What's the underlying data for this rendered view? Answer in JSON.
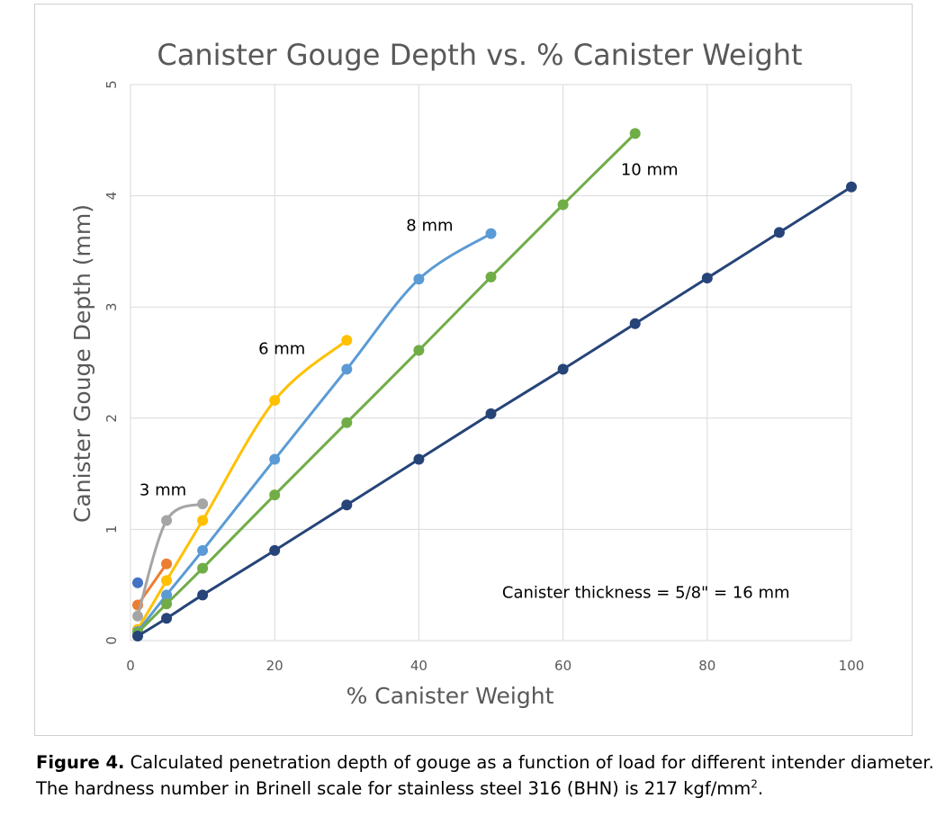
{
  "chart_data": {
    "type": "line",
    "title": "Canister Gouge Depth vs. % Canister Weight",
    "xlabel": "% Canister Weight",
    "ylabel": "Canister Gouge Depth (mm)",
    "xlim": [
      0,
      100
    ],
    "ylim": [
      0,
      5
    ],
    "x_ticks": [
      "0",
      "20",
      "40",
      "60",
      "80",
      "100"
    ],
    "y_ticks": [
      "0",
      "1",
      "2",
      "3",
      "4",
      "5"
    ],
    "grid": true,
    "legend": "none (series labeled directly on plot)",
    "series": [
      {
        "color": "#4472C4",
        "x": [
          1
        ],
        "y": [
          0.52
        ]
      },
      {
        "color": "#ED7D31",
        "x": [
          1,
          5
        ],
        "y": [
          0.32,
          0.69
        ]
      },
      {
        "name": "3 mm",
        "color": "#A5A5A5",
        "x": [
          1,
          5,
          10
        ],
        "y": [
          0.22,
          1.08,
          1.23
        ]
      },
      {
        "name": "6 mm",
        "color": "#FFC000",
        "x": [
          1,
          5,
          10,
          20,
          30
        ],
        "y": [
          0.1,
          0.54,
          1.08,
          2.16,
          2.7
        ]
      },
      {
        "name": "8 mm",
        "color": "#5B9BD5",
        "x": [
          1,
          5,
          10,
          20,
          30,
          40,
          50
        ],
        "y": [
          0.08,
          0.41,
          0.81,
          1.63,
          2.44,
          3.25,
          3.66
        ]
      },
      {
        "name": "10 mm",
        "color": "#70AD47",
        "x": [
          1,
          5,
          10,
          20,
          30,
          40,
          50,
          60,
          70
        ],
        "y": [
          0.07,
          0.33,
          0.65,
          1.31,
          1.96,
          2.61,
          3.27,
          3.92,
          4.56
        ]
      },
      {
        "color": "#264478",
        "x": [
          1,
          5,
          10,
          20,
          30,
          40,
          50,
          60,
          70,
          80,
          90,
          100
        ],
        "y": [
          0.04,
          0.2,
          0.41,
          0.81,
          1.22,
          1.63,
          2.04,
          2.44,
          2.85,
          3.26,
          3.67,
          4.08
        ]
      }
    ],
    "annotations": [
      {
        "text": "3 mm",
        "x": 4.5,
        "y": 1.35
      },
      {
        "text": "6 mm",
        "x": 21,
        "y": 2.62
      },
      {
        "text": "8 mm",
        "x": 41.5,
        "y": 3.73
      },
      {
        "text": "10 mm",
        "x": 72,
        "y": 4.23
      },
      {
        "text": "Canister thickness = 5/8\" = 16 mm",
        "x": 71.5,
        "y": 0.43
      }
    ]
  },
  "caption": {
    "label": "Figure 4.",
    "text": " Calculated penetration depth of gouge as a function of load for different intender diameter. The hardness number in Brinell scale for stainless steel 316 (BHN) is 217 kgf/mm",
    "superscript": "2",
    "end": "."
  }
}
